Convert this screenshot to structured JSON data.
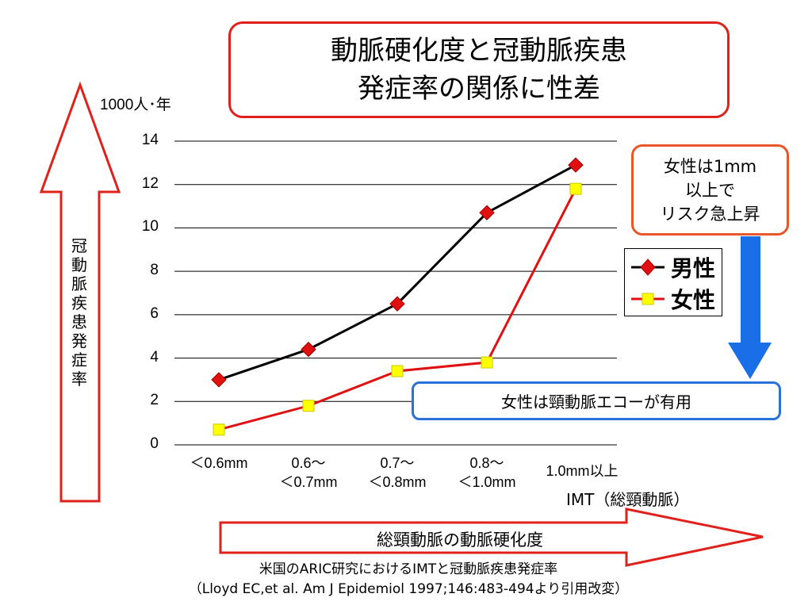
{
  "title": {
    "line1": "動脈硬化度と冠動脈疾患",
    "line2": "発症率の関係に性差"
  },
  "unit_label": "1000人･年",
  "callout_female_risk": {
    "line1": "女性は1mm",
    "line2": "以上で",
    "line3": "リスク急上昇"
  },
  "callout_echo": "女性は頸動脈エコーが有用",
  "vertical_arrow_label": "冠動脈疾患発症率",
  "horizontal_arrow_label": "総頸動脈の動脈硬化度",
  "x_axis_title": "IMT（総頸動脈）",
  "citation": {
    "line1": "米国のARIC研究におけるIMTと冠動脈疾患発症率",
    "line2": "（Lloyd EC,et al. Am J Epidemiol 1997;146:483-494より引用改変）"
  },
  "colors": {
    "male": "#000000",
    "female": "#e01010",
    "female_marker": "#ffff00",
    "male_marker": "#e01010",
    "arrow_red": "#e0201a",
    "arrow_blue": "#1a6ee8"
  },
  "chart_data": {
    "type": "line",
    "categories": [
      "＜0.6mm",
      "0.6～＜0.7mm",
      "0.7～＜0.8mm",
      "0.8～＜1.0mm",
      "1.0mm以上"
    ],
    "category_lines": [
      [
        "＜0.6mm"
      ],
      [
        "0.6～",
        "＜0.7mm"
      ],
      [
        "0.7～",
        "＜0.8mm"
      ],
      [
        "0.8～",
        "＜1.0mm"
      ],
      [
        "1.0mm以上"
      ]
    ],
    "series": [
      {
        "name": "男性",
        "values": [
          3.0,
          4.4,
          6.5,
          10.7,
          12.9
        ],
        "marker": "diamond"
      },
      {
        "name": "女性",
        "values": [
          0.7,
          1.8,
          3.4,
          3.8,
          11.8
        ],
        "marker": "square"
      }
    ],
    "yticks": [
      "0",
      "2",
      "4",
      "6",
      "8",
      "10",
      "12",
      "14"
    ],
    "ylim": [
      0,
      14
    ],
    "ylabel": "1000人･年",
    "xlabel": "IMT（総頸動脈）",
    "grid": true,
    "legend": "right"
  }
}
